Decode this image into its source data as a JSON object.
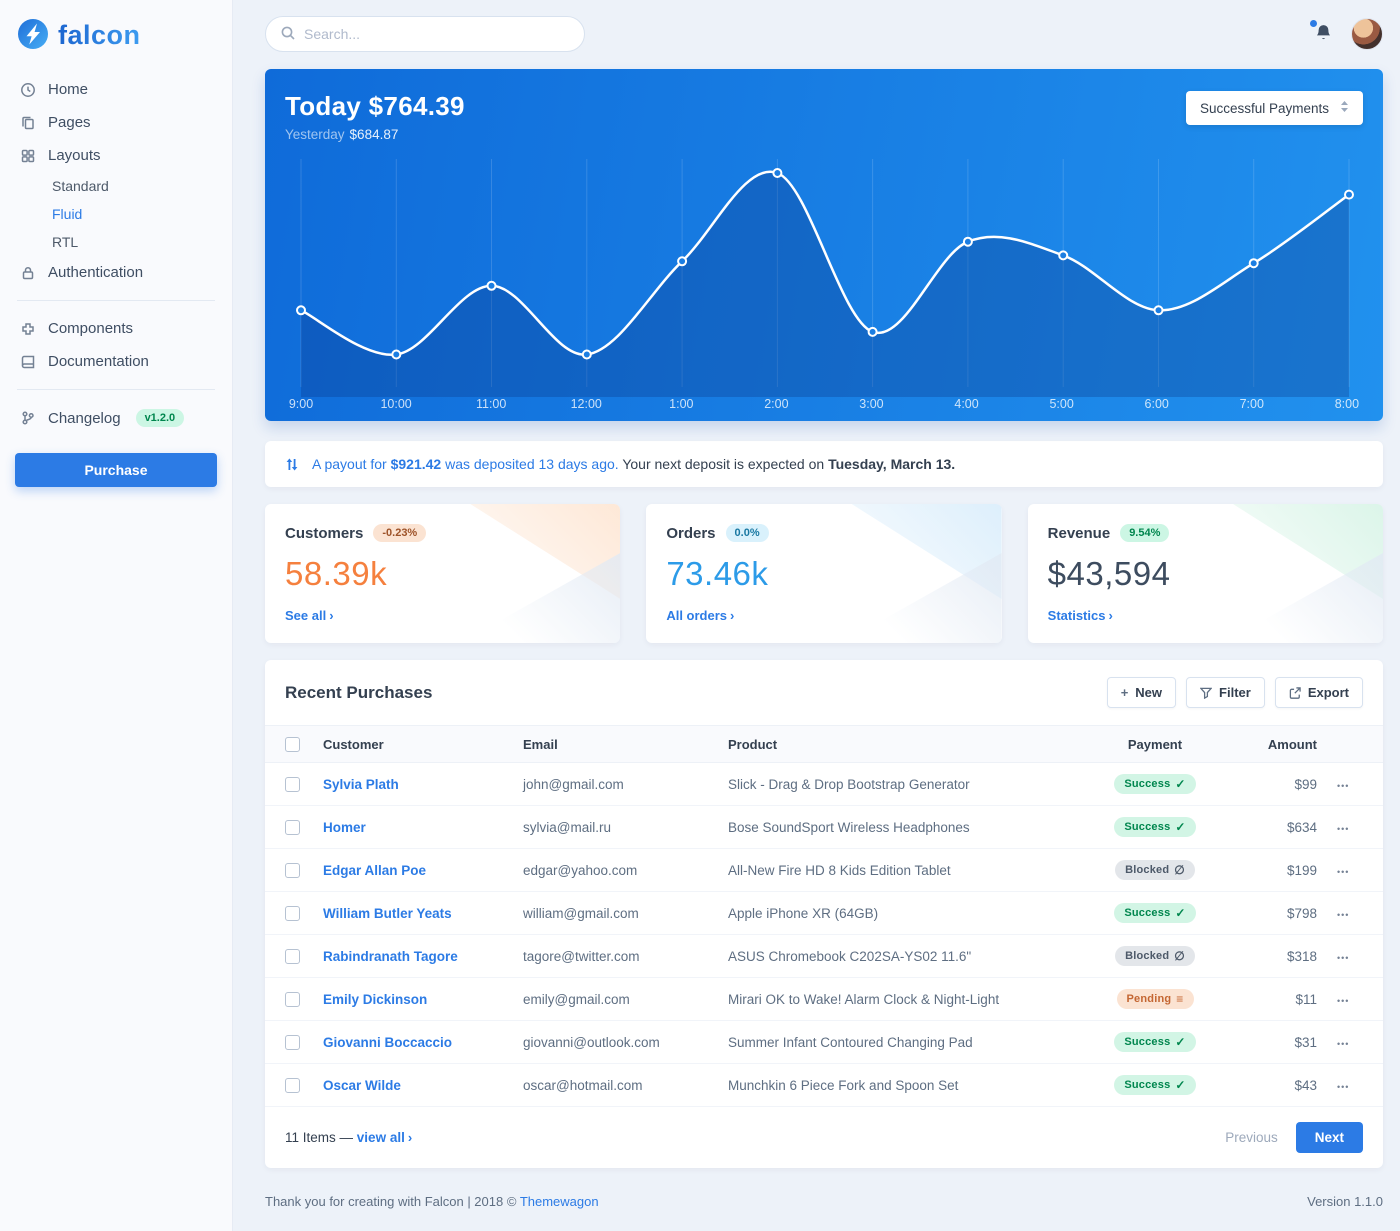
{
  "brand": {
    "name": "falcon"
  },
  "topbar": {
    "search_placeholder": "Search..."
  },
  "sidebar": {
    "items": {
      "home": "Home",
      "pages": "Pages",
      "layouts": "Layouts",
      "auth": "Authentication",
      "components": "Components",
      "documentation": "Documentation",
      "changelog": "Changelog"
    },
    "layouts_children": [
      "Standard",
      "Fluid",
      "RTL"
    ],
    "active_child": "Fluid",
    "changelog_badge": "v1.2.0",
    "purchase": "Purchase"
  },
  "chart_card": {
    "title_label": "Today",
    "title_value": "$764.39",
    "subtitle_label": "Yesterday",
    "subtitle_value": "$684.87",
    "dropdown": "Successful Payments"
  },
  "chart_data": {
    "type": "line",
    "title": "Today $764.39",
    "series_name": "Successful Payments",
    "x": [
      "9:00",
      "10:00",
      "11:00",
      "12:00",
      "1:00",
      "2:00",
      "3:00",
      "4:00",
      "5:00",
      "6:00",
      "7:00",
      "8:00"
    ],
    "values": [
      70,
      25,
      95,
      25,
      120,
      210,
      48,
      140,
      126,
      70,
      118,
      188
    ],
    "xlabel": "",
    "ylabel": "",
    "ylim": [
      0,
      220
    ],
    "grid": "vertical-only",
    "legend": "none",
    "line_color": "#ffffff"
  },
  "banner": {
    "link_prefix": "A payout for",
    "amount": "$921.42",
    "link_suffix": "was deposited 13 days ago.",
    "text": "Your next deposit is expected on",
    "date": "Tuesday, March 13."
  },
  "stats": [
    {
      "title": "Customers",
      "badge": "-0.23%",
      "value": "58.39k",
      "link": "See all"
    },
    {
      "title": "Orders",
      "badge": "0.0%",
      "value": "73.46k",
      "link": "All orders"
    },
    {
      "title": "Revenue",
      "badge": "9.54%",
      "value": "$43,594",
      "link": "Statistics"
    }
  ],
  "purchases": {
    "title": "Recent Purchases",
    "actions": {
      "new": "New",
      "filter": "Filter",
      "export": "Export"
    },
    "columns": [
      "Customer",
      "Email",
      "Product",
      "Payment",
      "Amount"
    ],
    "rows": [
      {
        "customer": "Sylvia Plath",
        "email": "john@gmail.com",
        "product": "Slick - Drag & Drop Bootstrap Generator",
        "status": "Success",
        "status_type": "success",
        "amount": "$99"
      },
      {
        "customer": "Homer",
        "email": "sylvia@mail.ru",
        "product": "Bose SoundSport Wireless Headphones",
        "status": "Success",
        "status_type": "success",
        "amount": "$634"
      },
      {
        "customer": "Edgar Allan Poe",
        "email": "edgar@yahoo.com",
        "product": "All-New Fire HD 8 Kids Edition Tablet",
        "status": "Blocked",
        "status_type": "blocked",
        "amount": "$199"
      },
      {
        "customer": "William Butler Yeats",
        "email": "william@gmail.com",
        "product": "Apple iPhone XR (64GB)",
        "status": "Success",
        "status_type": "success",
        "amount": "$798"
      },
      {
        "customer": "Rabindranath Tagore",
        "email": "tagore@twitter.com",
        "product": "ASUS Chromebook C202SA-YS02 11.6\"",
        "status": "Blocked",
        "status_type": "blocked",
        "amount": "$318"
      },
      {
        "customer": "Emily Dickinson",
        "email": "emily@gmail.com",
        "product": "Mirari OK to Wake! Alarm Clock & Night-Light",
        "status": "Pending",
        "status_type": "pending",
        "amount": "$11"
      },
      {
        "customer": "Giovanni Boccaccio",
        "email": "giovanni@outlook.com",
        "product": "Summer Infant Contoured Changing Pad",
        "status": "Success",
        "status_type": "success",
        "amount": "$31"
      },
      {
        "customer": "Oscar Wilde",
        "email": "oscar@hotmail.com",
        "product": "Munchkin 6 Piece Fork and Spoon Set",
        "status": "Success",
        "status_type": "success",
        "amount": "$43"
      }
    ],
    "footer": {
      "items_text": "11 Items —",
      "view_all": "view all",
      "previous": "Previous",
      "next": "Next"
    }
  },
  "page_footer": {
    "thanks": "Thank you for creating with Falcon | 2018 ©",
    "vendor": "Themewagon",
    "version": "Version 1.1.0"
  },
  "colors": {
    "primary": "#2c7be5",
    "warning": "#f5803e",
    "info": "#2c9be8",
    "success": "#00d27a"
  }
}
